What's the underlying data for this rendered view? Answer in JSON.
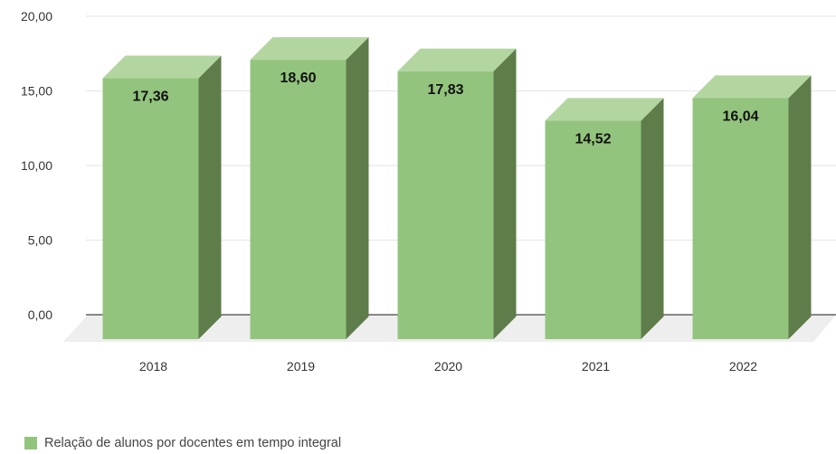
{
  "chart_data": {
    "type": "bar",
    "title": "",
    "xlabel": "",
    "ylabel": "",
    "categories": [
      "2018",
      "2019",
      "2020",
      "2021",
      "2022"
    ],
    "series": [
      {
        "name": "Relação de alunos por docentes em tempo integral",
        "values": [
          17.36,
          18.6,
          17.83,
          14.52,
          16.04
        ],
        "data_labels": [
          "17,36",
          "18,60",
          "17,83",
          "14,52",
          "16,04"
        ],
        "color": "#93c47d"
      }
    ],
    "ylim": [
      0,
      20
    ],
    "y_ticks": [
      0,
      5,
      10,
      15,
      20
    ],
    "y_tick_labels": [
      "0,00",
      "5,00",
      "10,00",
      "15,00",
      "20,00"
    ],
    "grid": true,
    "legend_position": "bottom-left",
    "style": "3d-column",
    "colors": {
      "bar_front": "#93c47d",
      "bar_top": "#b3d6a1",
      "bar_side": "#5f7c4b",
      "grid": "#e8e8e8",
      "axis": "#444444",
      "floor": "#eeeeee",
      "tick_text": "#333333",
      "data_label": "#111111"
    }
  }
}
